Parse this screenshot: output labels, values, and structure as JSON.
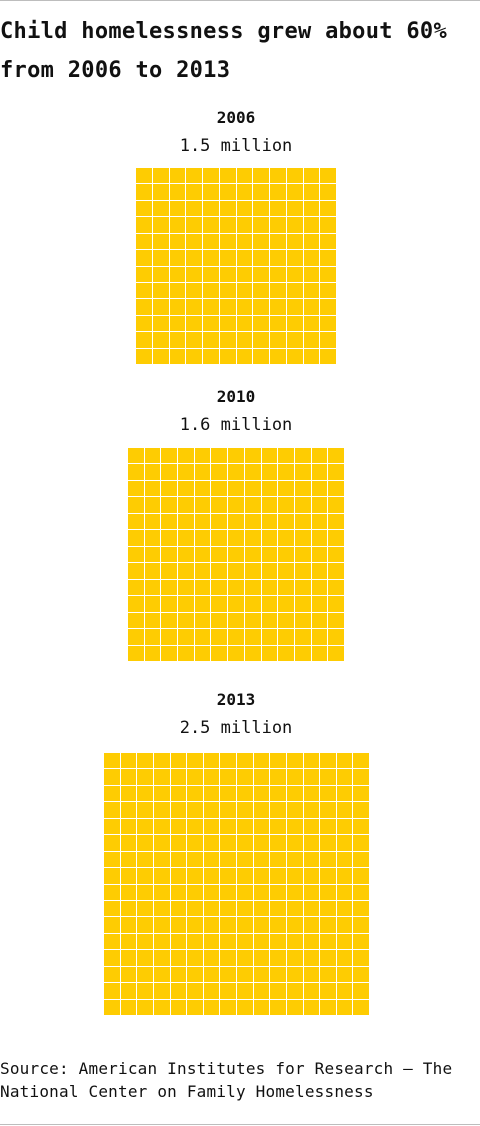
{
  "title": "Child homelessness grew about 60% from 2006 to 2013",
  "source": "Source: American Institutes for Research — The National Center on Family Homelessness",
  "colors": {
    "square_fill": "#FECC02",
    "gridline": "#FFFFFF",
    "rule": "#BDBDBD",
    "text": "#111111"
  },
  "chart_data": {
    "type": "waffle",
    "title": "Child homelessness grew about 60% from 2006 to 2013",
    "categories": [
      "2006",
      "2010",
      "2013"
    ],
    "values": [
      1.5,
      1.6,
      2.5
    ],
    "value_labels": [
      "1.5 million",
      "1.6 million",
      "2.5 million"
    ],
    "unit": "million",
    "grid_squares_per_side": [
      12,
      13,
      16
    ],
    "grid": false,
    "legend": "none"
  }
}
